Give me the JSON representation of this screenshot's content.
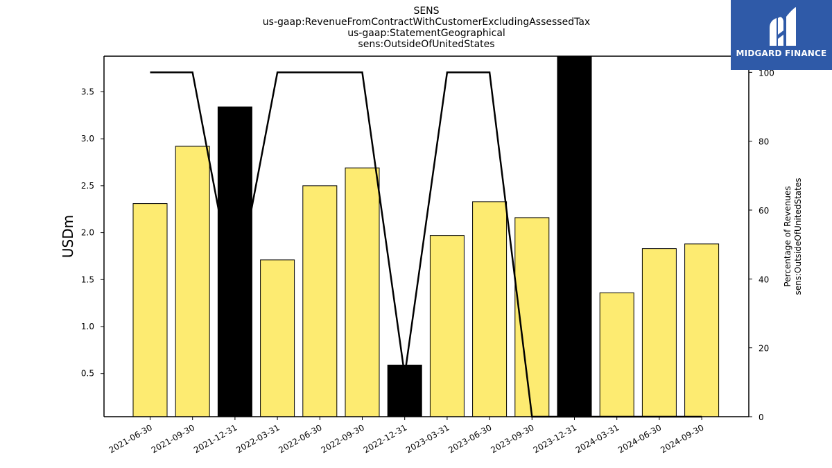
{
  "chart_data": {
    "type": "bar",
    "title_lines": [
      "SENS",
      "us-gaap:RevenueFromContractWithCustomerExcludingAssessedTax",
      "us-gaap:StatementGeographical",
      "sens:OutsideOfUnitedStates"
    ],
    "ylabel": "USDm",
    "ylabel_right": [
      "Percentage of Revenues",
      "sens:OutsideOfUnitedStates"
    ],
    "categories": [
      "2021-06-30",
      "2021-09-30",
      "2021-12-31",
      "2022-03-31",
      "2022-06-30",
      "2022-09-30",
      "2022-12-31",
      "2023-03-31",
      "2023-06-30",
      "2023-09-30",
      "2023-12-31",
      "2024-03-31",
      "2024-06-30",
      "2024-09-30"
    ],
    "values": [
      2.31,
      2.92,
      3.34,
      1.71,
      2.5,
      2.69,
      0.59,
      1.97,
      2.33,
      2.16,
      3.9,
      1.36,
      1.83,
      1.88
    ],
    "bar_colors": [
      "#fdeb71",
      "#fdeb71",
      "#000000",
      "#fdeb71",
      "#fdeb71",
      "#fdeb71",
      "#000000",
      "#fdeb71",
      "#fdeb71",
      "#fdeb71",
      "#000000",
      "#fdeb71",
      "#fdeb71",
      "#fdeb71"
    ],
    "percentages": [
      100,
      100,
      35,
      100,
      100,
      100,
      12,
      100,
      100,
      0,
      0,
      0,
      0,
      0
    ],
    "ylim": [
      0.04,
      3.88
    ],
    "ylim_right": [
      0,
      104.7
    ],
    "yticks": [
      0.5,
      1.0,
      1.5,
      2.0,
      2.5,
      3.0,
      3.5
    ],
    "yticks_right": [
      0,
      20,
      40,
      60,
      80,
      100
    ],
    "grid": false
  },
  "logo": {
    "text": "MIDGARD FINANCE",
    "color": "#2f5aa8",
    "icon": "midgard-logo-icon"
  }
}
